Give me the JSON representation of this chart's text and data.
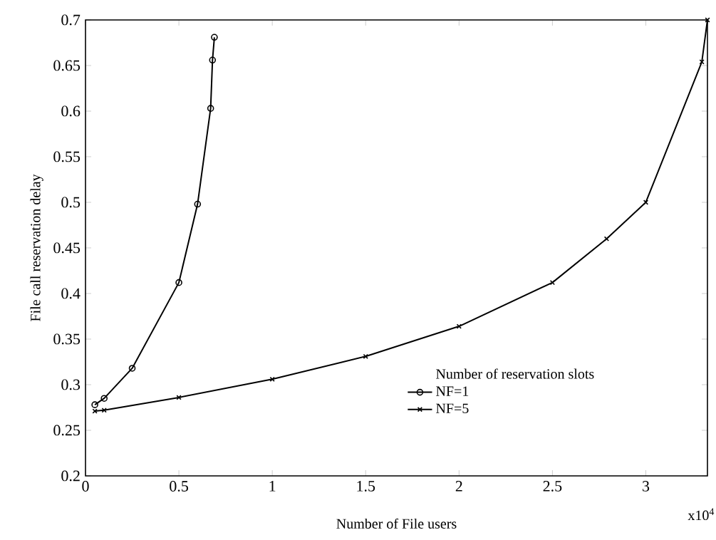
{
  "chart_data": {
    "type": "line",
    "xlabel": "Number of File users",
    "ylabel": "File call reservation delay",
    "legend_title": "Number of reservation slots",
    "legend": "bottom right",
    "xlim": [
      0,
      3.33
    ],
    "ylim": [
      0.2,
      0.7
    ],
    "xticks": [
      0,
      0.5,
      1,
      1.5,
      2,
      2.5,
      3
    ],
    "yticks": [
      0.2,
      0.25,
      0.3,
      0.35,
      0.4,
      0.45,
      0.5,
      0.55,
      0.6,
      0.65,
      0.7
    ],
    "grid": false,
    "line_style": "solid",
    "annotations": [
      "x10$^{4}$"
    ],
    "series": [
      {
        "name": "NF=1",
        "color": "#000000",
        "marker": "circle",
        "x": [
          0.05,
          0.1,
          0.25,
          0.5,
          0.6,
          0.67,
          0.68,
          0.69
        ],
        "values": [
          0.278,
          0.285,
          0.318,
          0.412,
          0.498,
          0.603,
          0.656,
          0.681
        ]
      },
      {
        "name": "NF=5",
        "color": "#000000",
        "marker": "cross",
        "x": [
          0.05,
          0.1,
          0.5,
          1,
          1.5,
          2,
          2.5,
          2.79,
          3,
          3.3,
          3.33
        ],
        "values": [
          0.271,
          0.272,
          0.286,
          0.306,
          0.331,
          0.364,
          0.412,
          0.46,
          0.5,
          0.654,
          0.7
        ]
      }
    ]
  }
}
